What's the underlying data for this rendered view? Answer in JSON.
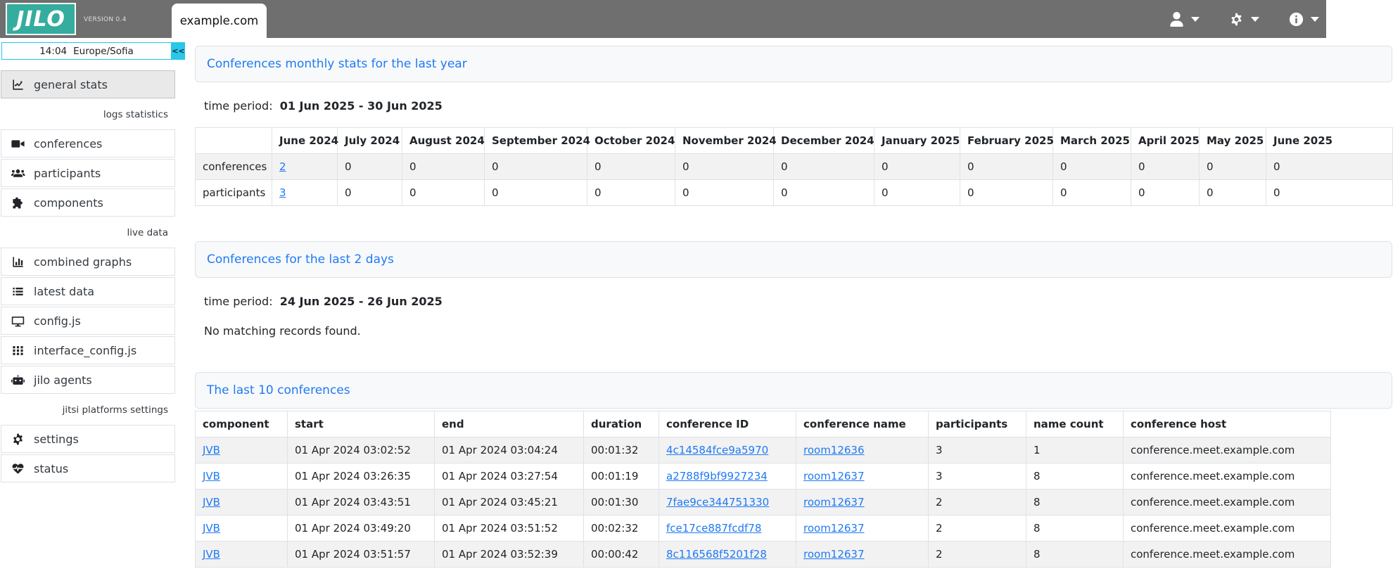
{
  "colors": {
    "brand_teal": "#35ad9e",
    "topbar_gray": "#6f6f6f",
    "link_blue": "#1e7af5",
    "clock_cyan": "#29c7e8",
    "stripe_gray": "#f2f2f2"
  },
  "topbar": {
    "logo": "JILO",
    "version": "VERSION 0.4",
    "tab": "example.com",
    "icons": [
      "user-icon",
      "gear-icon",
      "info-icon"
    ]
  },
  "sidebar": {
    "clock": {
      "time": "14:04",
      "timezone": "Europe/Sofia",
      "collapse_label": "<<"
    },
    "menu": [
      {
        "type": "item",
        "label": "general stats",
        "icon": "chart-line-icon",
        "active": true
      },
      {
        "type": "section",
        "label": "logs statistics"
      },
      {
        "type": "item",
        "label": "conferences",
        "icon": "video-camera-icon"
      },
      {
        "type": "item",
        "label": "participants",
        "icon": "users-icon"
      },
      {
        "type": "item",
        "label": "components",
        "icon": "puzzle-piece-icon"
      },
      {
        "type": "section",
        "label": "live data"
      },
      {
        "type": "item",
        "label": "combined graphs",
        "icon": "bar-chart-icon"
      },
      {
        "type": "item",
        "label": "latest data",
        "icon": "list-icon"
      },
      {
        "type": "item",
        "label": "config.js",
        "icon": "monitor-icon"
      },
      {
        "type": "item",
        "label": "interface_config.js",
        "icon": "grid-icon"
      },
      {
        "type": "item",
        "label": "jilo agents",
        "icon": "robot-icon"
      },
      {
        "type": "section",
        "label": "jitsi platforms settings"
      },
      {
        "type": "item",
        "label": "settings",
        "icon": "gear-icon"
      },
      {
        "type": "item",
        "label": "status",
        "icon": "heart-pulse-icon"
      }
    ]
  },
  "main": {
    "monthly_stats": {
      "title": "Conferences monthly stats for the last year",
      "time_period_label": "time period:",
      "time_period": "01 Jun 2025 - 30 Jun 2025",
      "columns": [
        "",
        "June 2024",
        "July 2024",
        "August 2024",
        "September 2024",
        "October 2024",
        "November 2024",
        "December 2024",
        "January 2025",
        "February 2025",
        "March 2025",
        "April 2025",
        "May 2025",
        "June 2025"
      ],
      "rows": [
        {
          "label": "conferences",
          "values": [
            "2",
            "0",
            "0",
            "0",
            "0",
            "0",
            "0",
            "0",
            "0",
            "0",
            "0",
            "0",
            "0"
          ],
          "link_value_indices": [
            0
          ]
        },
        {
          "label": "participants",
          "values": [
            "3",
            "0",
            "0",
            "0",
            "0",
            "0",
            "0",
            "0",
            "0",
            "0",
            "0",
            "0",
            "0"
          ],
          "link_value_indices": [
            0
          ]
        }
      ]
    },
    "last_2_days": {
      "title": "Conferences for the last 2 days",
      "time_period_label": "time period:",
      "time_period": "24 Jun 2025 - 26 Jun 2025",
      "empty_message": "No matching records found."
    },
    "last_10": {
      "title": "The last 10 conferences",
      "columns": [
        "component",
        "start",
        "end",
        "duration",
        "conference ID",
        "conference name",
        "participants",
        "name count",
        "conference host"
      ],
      "link_columns": [
        0,
        4,
        5
      ],
      "rows": [
        [
          "JVB",
          "01 Apr 2024 03:02:52",
          "01 Apr 2024 03:04:24",
          "00:01:32",
          "4c14584fce9a5970",
          "room12636",
          "3",
          "1",
          "conference.meet.example.com"
        ],
        [
          "JVB",
          "01 Apr 2024 03:26:35",
          "01 Apr 2024 03:27:54",
          "00:01:19",
          "a2788f9bf9927234",
          "room12637",
          "3",
          "8",
          "conference.meet.example.com"
        ],
        [
          "JVB",
          "01 Apr 2024 03:43:51",
          "01 Apr 2024 03:45:21",
          "00:01:30",
          "7fae9ce344751330",
          "room12637",
          "2",
          "8",
          "conference.meet.example.com"
        ],
        [
          "JVB",
          "01 Apr 2024 03:49:20",
          "01 Apr 2024 03:51:52",
          "00:02:32",
          "fce17ce887fcdf78",
          "room12637",
          "2",
          "8",
          "conference.meet.example.com"
        ],
        [
          "JVB",
          "01 Apr 2024 03:51:57",
          "01 Apr 2024 03:52:39",
          "00:00:42",
          "8c116568f5201f28",
          "room12637",
          "2",
          "8",
          "conference.meet.example.com"
        ]
      ]
    }
  }
}
